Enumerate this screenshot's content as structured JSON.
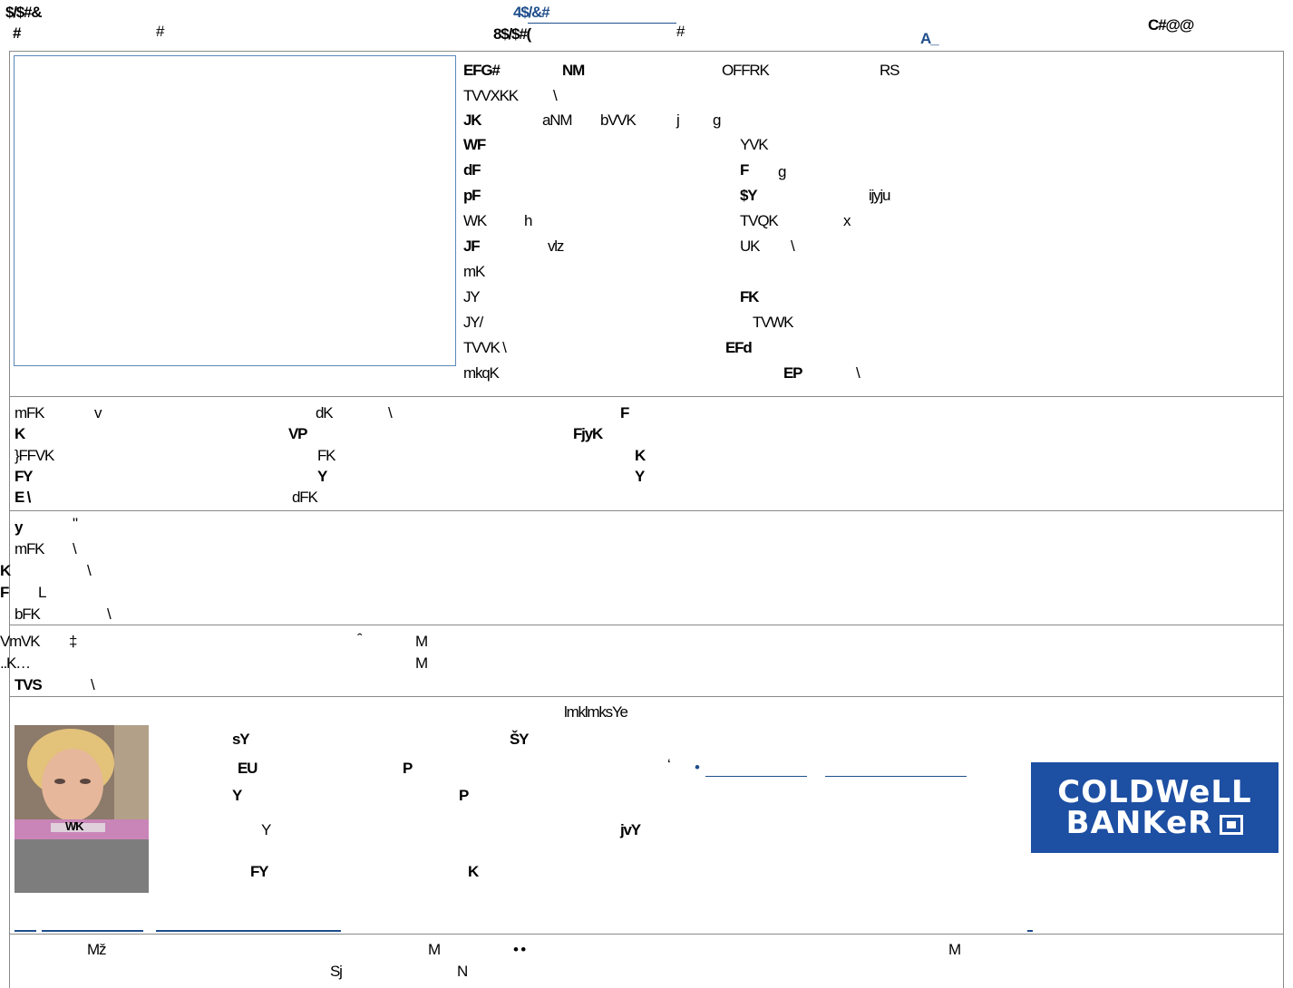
{
  "header": {
    "top_left": "$/$#&",
    "top_link": "4$/&#",
    "row2_a": "#",
    "row2_b": "#",
    "row2_mid": "8$/$#(",
    "row2_c": "#",
    "row2_link": "A_",
    "right_code": "C#@@",
    "left_small": "#"
  },
  "details": {
    "rows": [
      {
        "a": "EFG#",
        "b": "NM",
        "c": "OFFRK",
        "d": "RS"
      },
      {
        "a": "TVVXKK",
        "b": "\\"
      },
      {
        "a": "JK",
        "b": "aNM",
        "c": "bVVK",
        "d": "j",
        "e": "g"
      },
      {
        "a": "WF",
        "b": "YVK"
      },
      {
        "a": "dF",
        "b": "F",
        "c": "g"
      },
      {
        "a": "pF",
        "b": "$Y",
        "c": "ijyju"
      },
      {
        "a": "WK",
        "b": "h",
        "c": "TVQK",
        "d": "x"
      },
      {
        "a": "JF",
        "b": "vlz",
        "c": "UK",
        "d": "\\"
      },
      {
        "a": "mK"
      },
      {
        "a": "JY",
        "b": "FK"
      },
      {
        "a": "JY/",
        "b": "TVWK"
      },
      {
        "a": "TVVK \\",
        "b": "EFd"
      },
      {
        "a": "mkqK",
        "b": "EP",
        "c": "\\"
      }
    ]
  },
  "section2": {
    "rows": [
      {
        "a": "mFK",
        "b": "v",
        "c": "dK",
        "d": "\\",
        "e": "F"
      },
      {
        "a": "K",
        "b": "VP",
        "c": "FjyK"
      },
      {
        "a": "}FFVK",
        "b": "FK",
        "c": "K"
      },
      {
        "a": "FY",
        "b": "Y",
        "c": "Y"
      },
      {
        "a": "E  \\",
        "b": "dFK"
      }
    ]
  },
  "section3": {
    "rows": [
      {
        "a": "y",
        "b": "\""
      },
      {
        "a": "mFK",
        "b": "\\"
      },
      {
        "a": "K",
        "b": "\\"
      },
      {
        "a": "F",
        "b": "L"
      },
      {
        "a": "bFK",
        "b": "\\"
      }
    ]
  },
  "section4": {
    "rows": [
      {
        "a": "VmVK",
        "b": "‡",
        "c": "ˆ",
        "d": "M"
      },
      {
        "a": "..K…",
        "b": "M"
      },
      {
        "a": "TVS",
        "b": "\\"
      }
    ]
  },
  "agent": {
    "heading": "lmklmksYe",
    "rows": [
      {
        "a": "sY",
        "b": "ŠY"
      },
      {
        "a": "EU",
        "b": "P",
        "c": "‘",
        "d": "•"
      },
      {
        "a": "Y",
        "b": "P"
      },
      {
        "a": "Y",
        "b": "jvY"
      },
      {
        "a": "FY",
        "b": "K"
      }
    ],
    "photo_caption": "WK",
    "logo_line1": "COLDWeLL",
    "logo_line2": "BANKeR"
  },
  "footer": {
    "a": "Mž",
    "b": "M",
    "c": "• •",
    "d": "M",
    "e": "Sj",
    "f": "N"
  },
  "colors": {
    "link": "#1f4e8c",
    "logo_bg": "#1d4fa3",
    "frame": "#5b88b8"
  }
}
